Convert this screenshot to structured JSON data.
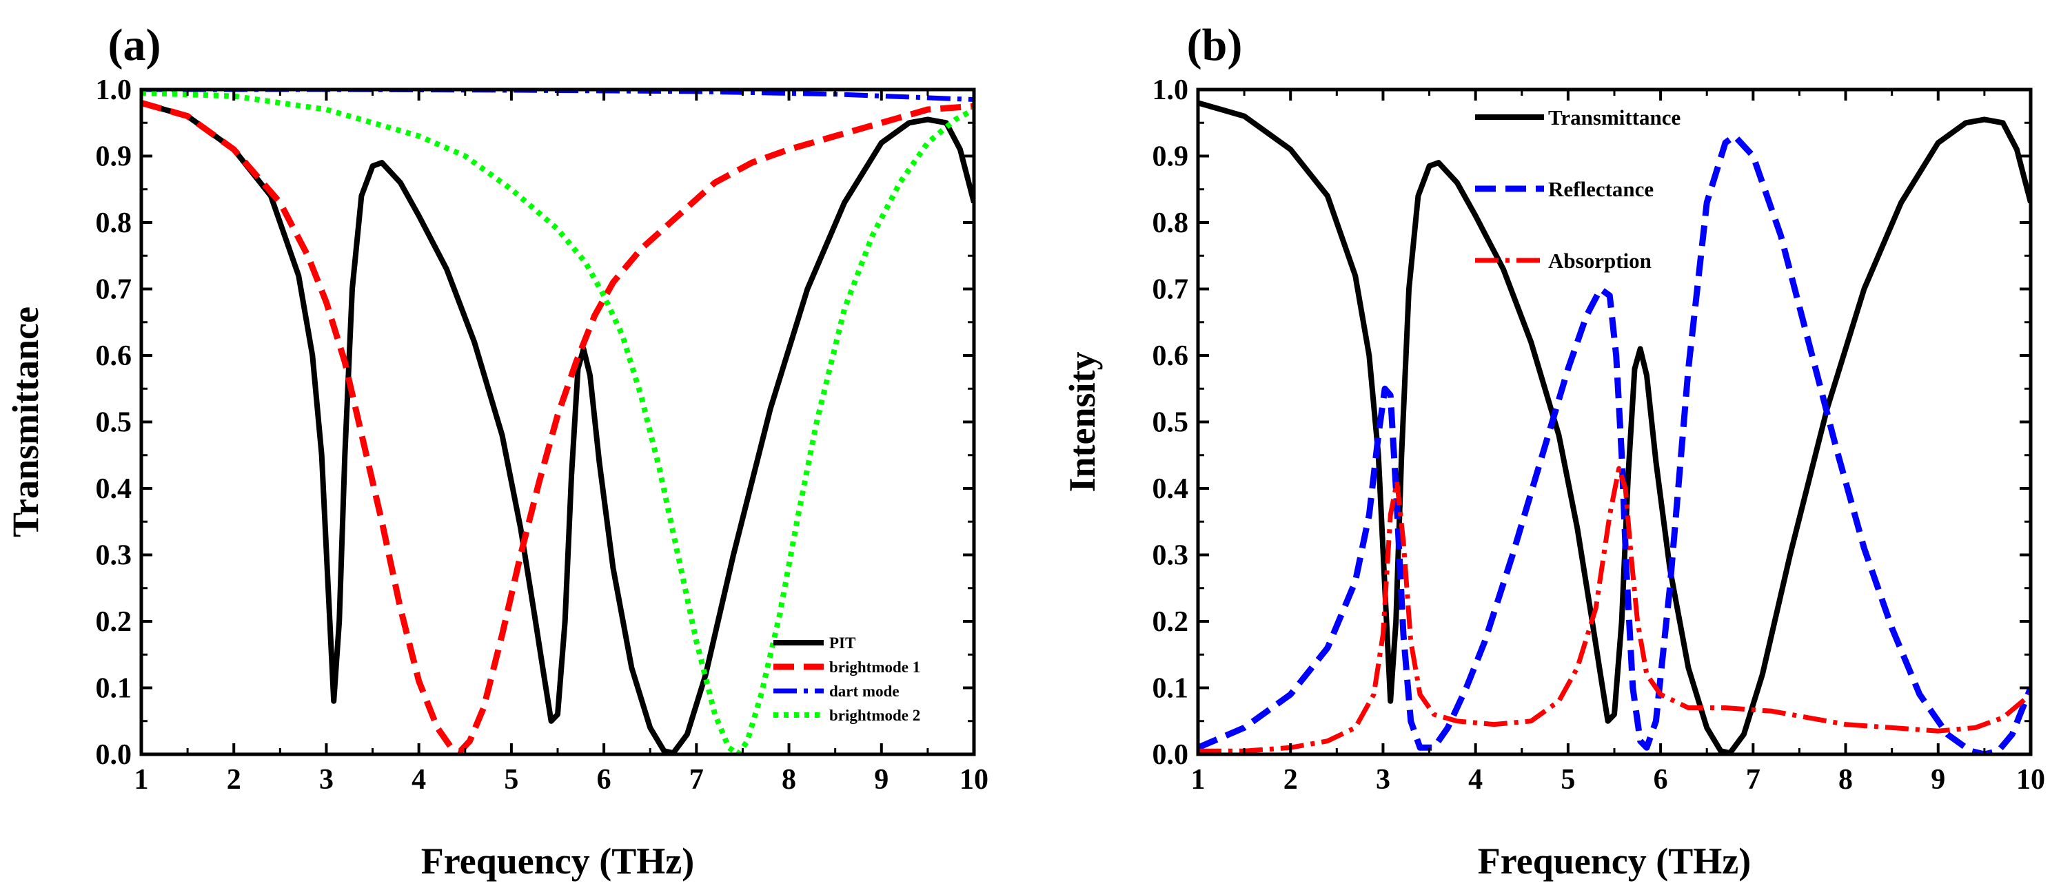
{
  "chart_data": [
    {
      "type": "line",
      "panel_label": "(a)",
      "xlabel": "Frequency (THz)",
      "ylabel": "Transmittance",
      "xlim": [
        1,
        10
      ],
      "ylim": [
        0,
        1.0
      ],
      "xticks": [
        "1",
        "2",
        "3",
        "4",
        "5",
        "6",
        "7",
        "8",
        "9",
        "10"
      ],
      "yticks": [
        "0.0",
        "0.1",
        "0.2",
        "0.3",
        "0.4",
        "0.5",
        "0.6",
        "0.7",
        "0.8",
        "0.9",
        "1.0"
      ],
      "legend_position": "bottom-right",
      "series": [
        {
          "name": "PIT",
          "color": "#000000",
          "dash": "solid",
          "x": [
            1.0,
            1.5,
            2.0,
            2.4,
            2.7,
            2.85,
            2.95,
            3.02,
            3.08,
            3.14,
            3.2,
            3.28,
            3.38,
            3.5,
            3.6,
            3.8,
            4.0,
            4.3,
            4.6,
            4.9,
            5.1,
            5.25,
            5.35,
            5.43,
            5.5,
            5.58,
            5.65,
            5.72,
            5.78,
            5.85,
            5.95,
            6.1,
            6.3,
            6.5,
            6.65,
            6.75,
            6.9,
            7.1,
            7.4,
            7.8,
            8.2,
            8.6,
            9.0,
            9.3,
            9.5,
            9.7,
            9.85,
            10.0
          ],
          "y": [
            0.98,
            0.96,
            0.91,
            0.84,
            0.72,
            0.6,
            0.45,
            0.25,
            0.08,
            0.2,
            0.45,
            0.7,
            0.84,
            0.885,
            0.89,
            0.86,
            0.81,
            0.73,
            0.62,
            0.48,
            0.34,
            0.21,
            0.12,
            0.05,
            0.06,
            0.2,
            0.42,
            0.58,
            0.61,
            0.57,
            0.44,
            0.28,
            0.13,
            0.04,
            0.005,
            0.002,
            0.03,
            0.12,
            0.3,
            0.52,
            0.7,
            0.83,
            0.92,
            0.95,
            0.955,
            0.95,
            0.91,
            0.83
          ]
        },
        {
          "name": "brightmode 1",
          "color": "#ff0000",
          "dash": "dash",
          "x": [
            1.0,
            1.5,
            2.0,
            2.5,
            2.8,
            3.0,
            3.2,
            3.4,
            3.6,
            3.8,
            4.0,
            4.2,
            4.35,
            4.45,
            4.55,
            4.7,
            4.9,
            5.1,
            5.3,
            5.5,
            5.7,
            5.9,
            6.1,
            6.4,
            6.8,
            7.2,
            7.6,
            8.0,
            8.5,
            9.0,
            9.5,
            10.0
          ],
          "y": [
            0.98,
            0.96,
            0.91,
            0.83,
            0.75,
            0.68,
            0.59,
            0.47,
            0.35,
            0.22,
            0.11,
            0.04,
            0.01,
            0.005,
            0.02,
            0.07,
            0.18,
            0.3,
            0.41,
            0.51,
            0.59,
            0.66,
            0.71,
            0.76,
            0.81,
            0.86,
            0.89,
            0.91,
            0.93,
            0.95,
            0.97,
            0.975
          ]
        },
        {
          "name": "dart mode",
          "color": "#0000ff",
          "dash": "dashdot",
          "x": [
            1.0,
            3.0,
            5.0,
            7.0,
            8.5,
            10.0
          ],
          "y": [
            1.0,
            1.0,
            0.999,
            0.997,
            0.993,
            0.985
          ]
        },
        {
          "name": "brightmode 2",
          "color": "#00ff00",
          "dash": "dot",
          "x": [
            1.0,
            2.0,
            3.0,
            4.0,
            4.5,
            5.0,
            5.5,
            5.8,
            6.0,
            6.2,
            6.4,
            6.6,
            6.8,
            7.0,
            7.2,
            7.35,
            7.45,
            7.55,
            7.7,
            7.9,
            8.1,
            8.3,
            8.6,
            8.9,
            9.2,
            9.5,
            9.8,
            10.0
          ],
          "y": [
            0.995,
            0.99,
            0.97,
            0.93,
            0.9,
            0.85,
            0.79,
            0.74,
            0.69,
            0.63,
            0.54,
            0.43,
            0.3,
            0.17,
            0.06,
            0.01,
            0.0,
            0.02,
            0.09,
            0.21,
            0.36,
            0.5,
            0.67,
            0.78,
            0.86,
            0.92,
            0.955,
            0.97
          ]
        }
      ]
    },
    {
      "type": "line",
      "panel_label": "(b)",
      "xlabel": "Frequency (THz)",
      "ylabel": "Intensity",
      "xlim": [
        1,
        10
      ],
      "ylim": [
        0,
        1.0
      ],
      "xticks": [
        "1",
        "2",
        "3",
        "4",
        "5",
        "6",
        "7",
        "8",
        "9",
        "10"
      ],
      "yticks": [
        "0.0",
        "0.1",
        "0.2",
        "0.3",
        "0.4",
        "0.5",
        "0.6",
        "0.7",
        "0.8",
        "0.9",
        "1.0"
      ],
      "legend_position": "top-center",
      "series": [
        {
          "name": "Transmittance",
          "color": "#000000",
          "dash": "solid",
          "x": [
            1.0,
            1.5,
            2.0,
            2.4,
            2.7,
            2.85,
            2.95,
            3.02,
            3.08,
            3.14,
            3.2,
            3.28,
            3.38,
            3.5,
            3.6,
            3.8,
            4.0,
            4.3,
            4.6,
            4.9,
            5.1,
            5.25,
            5.35,
            5.43,
            5.5,
            5.58,
            5.65,
            5.72,
            5.78,
            5.85,
            5.95,
            6.1,
            6.3,
            6.5,
            6.65,
            6.75,
            6.9,
            7.1,
            7.4,
            7.8,
            8.2,
            8.6,
            9.0,
            9.3,
            9.5,
            9.7,
            9.85,
            10.0
          ],
          "y": [
            0.98,
            0.96,
            0.91,
            0.84,
            0.72,
            0.6,
            0.45,
            0.25,
            0.08,
            0.2,
            0.45,
            0.7,
            0.84,
            0.885,
            0.89,
            0.86,
            0.81,
            0.73,
            0.62,
            0.48,
            0.34,
            0.21,
            0.12,
            0.05,
            0.06,
            0.2,
            0.42,
            0.58,
            0.61,
            0.57,
            0.44,
            0.28,
            0.13,
            0.04,
            0.005,
            0.002,
            0.03,
            0.12,
            0.3,
            0.52,
            0.7,
            0.83,
            0.92,
            0.95,
            0.955,
            0.95,
            0.91,
            0.83
          ]
        },
        {
          "name": "Reflectance",
          "color": "#0000ff",
          "dash": "dash",
          "x": [
            1.0,
            1.5,
            2.0,
            2.4,
            2.7,
            2.85,
            2.95,
            3.02,
            3.08,
            3.14,
            3.22,
            3.3,
            3.4,
            3.55,
            3.7,
            3.9,
            4.1,
            4.4,
            4.7,
            5.0,
            5.2,
            5.35,
            5.45,
            5.52,
            5.58,
            5.63,
            5.7,
            5.78,
            5.85,
            5.95,
            6.1,
            6.3,
            6.5,
            6.7,
            6.8,
            7.0,
            7.3,
            7.6,
            7.9,
            8.2,
            8.5,
            8.8,
            9.1,
            9.35,
            9.5,
            9.65,
            9.8,
            10.0
          ],
          "y": [
            0.01,
            0.04,
            0.09,
            0.16,
            0.26,
            0.36,
            0.48,
            0.55,
            0.54,
            0.4,
            0.18,
            0.05,
            0.01,
            0.01,
            0.04,
            0.1,
            0.17,
            0.3,
            0.44,
            0.58,
            0.66,
            0.7,
            0.69,
            0.6,
            0.45,
            0.28,
            0.1,
            0.02,
            0.01,
            0.05,
            0.25,
            0.58,
            0.83,
            0.92,
            0.93,
            0.9,
            0.78,
            0.62,
            0.46,
            0.31,
            0.19,
            0.09,
            0.03,
            0.005,
            0.0,
            0.005,
            0.03,
            0.1
          ]
        },
        {
          "name": "Absorption",
          "color": "#ff0000",
          "dash": "dashdot",
          "x": [
            1.0,
            1.5,
            2.0,
            2.4,
            2.7,
            2.9,
            3.0,
            3.08,
            3.15,
            3.22,
            3.3,
            3.4,
            3.55,
            3.8,
            4.2,
            4.6,
            4.9,
            5.1,
            5.3,
            5.45,
            5.55,
            5.62,
            5.68,
            5.75,
            5.85,
            6.0,
            6.3,
            6.7,
            7.2,
            7.6,
            8.0,
            8.5,
            9.0,
            9.4,
            9.7,
            10.0
          ],
          "y": [
            0.005,
            0.005,
            0.01,
            0.02,
            0.04,
            0.09,
            0.18,
            0.36,
            0.41,
            0.32,
            0.17,
            0.09,
            0.06,
            0.05,
            0.045,
            0.05,
            0.08,
            0.13,
            0.22,
            0.36,
            0.43,
            0.4,
            0.3,
            0.2,
            0.12,
            0.09,
            0.07,
            0.07,
            0.065,
            0.055,
            0.045,
            0.04,
            0.035,
            0.04,
            0.055,
            0.09
          ]
        }
      ]
    }
  ]
}
